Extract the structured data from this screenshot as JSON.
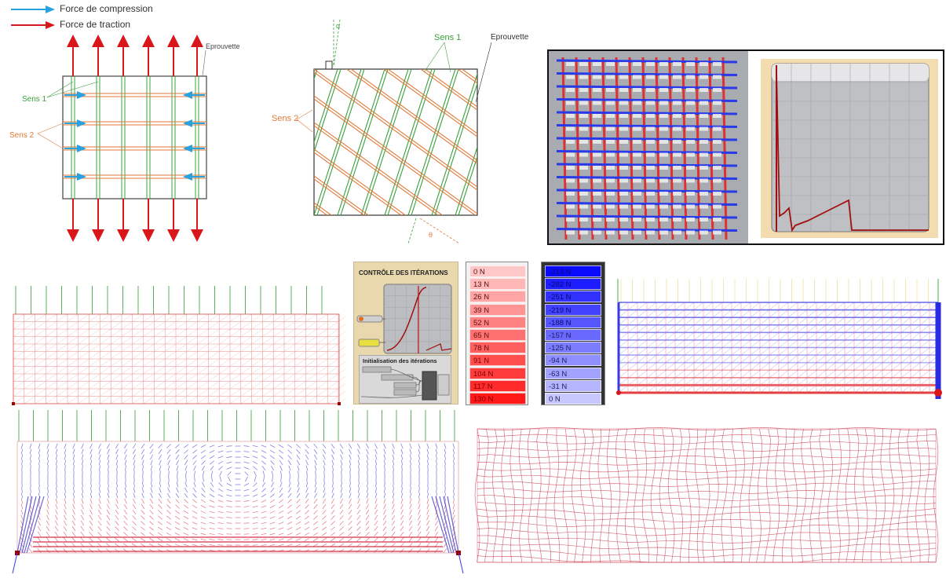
{
  "legend": {
    "compression": "Force de compression",
    "traction": "Force de traction",
    "compression_color": "#29a3e0",
    "traction_color": "#d9161c"
  },
  "diagram1": {
    "eprouvette": "Eprouvette",
    "sens1": "Sens 1",
    "sens2": "Sens 2"
  },
  "diagram2": {
    "eprouvette": "Eprouvette",
    "sens1": "Sens 1",
    "sens2": "Sens 2",
    "alpha": "α",
    "theta": "θ"
  },
  "control_panel": {
    "title": "CONTRÔLE DES ITÉRATIONS",
    "subtitle": "Initialisation des itérations"
  },
  "traction_scale": [
    "0 N",
    "13 N",
    "26 N",
    "39 N",
    "52 N",
    "65 N",
    "78 N",
    "91 N",
    "104 N",
    "117 N",
    "130 N"
  ],
  "compression_scale": [
    "-313 N",
    "-282 N",
    "-251 N",
    "-219 N",
    "-188 N",
    "-157 N",
    "-125 N",
    "-94 N",
    "-63 N",
    "-31 N",
    "0 N"
  ],
  "colors": {
    "green": "#3aa03a",
    "orange": "#e07a3a",
    "red": "#d9161c",
    "blue": "#2a2ae0"
  }
}
